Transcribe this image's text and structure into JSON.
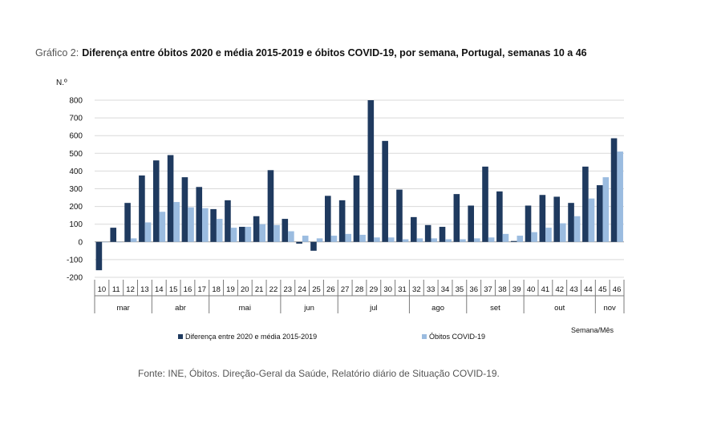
{
  "title": {
    "prefix": "Gráfico 2:",
    "main": "Diferença entre óbitos 2020 e média 2015-2019 e óbitos COVID-19, por semana, Portugal, semanas 10 a 46"
  },
  "source": "Fonte: INE, Óbitos. Direção-Geral da Saúde, Relatório diário de Situação COVID-19.",
  "chart_data": {
    "type": "bar",
    "ylabel": "N.º",
    "xlabel": "Semana/Mês",
    "ylim": [
      -200,
      800
    ],
    "yticks": [
      -200,
      -100,
      0,
      100,
      200,
      300,
      400,
      500,
      600,
      700,
      800
    ],
    "grid": true,
    "legend_position": "bottom",
    "categories": [
      "10",
      "11",
      "12",
      "13",
      "14",
      "15",
      "16",
      "17",
      "18",
      "19",
      "20",
      "21",
      "22",
      "23",
      "24",
      "25",
      "26",
      "27",
      "28",
      "29",
      "30",
      "31",
      "32",
      "33",
      "34",
      "35",
      "36",
      "37",
      "38",
      "39",
      "40",
      "41",
      "42",
      "43",
      "44",
      "45",
      "46"
    ],
    "months": [
      {
        "label": "mar",
        "start": 0,
        "end": 3
      },
      {
        "label": "abr",
        "start": 4,
        "end": 7
      },
      {
        "label": "mai",
        "start": 8,
        "end": 12
      },
      {
        "label": "jun",
        "start": 13,
        "end": 16
      },
      {
        "label": "jul",
        "start": 17,
        "end": 21
      },
      {
        "label": "ago",
        "start": 22,
        "end": 25
      },
      {
        "label": "set",
        "start": 26,
        "end": 29
      },
      {
        "label": "out",
        "start": 30,
        "end": 34
      },
      {
        "label": "nov",
        "start": 35,
        "end": 36
      }
    ],
    "series": [
      {
        "name": "Diferença entre 2020 e média 2015-2019",
        "color": "#1f3a5f",
        "values": [
          -160,
          80,
          220,
          375,
          460,
          490,
          365,
          310,
          185,
          235,
          85,
          145,
          405,
          130,
          -10,
          -50,
          260,
          235,
          375,
          800,
          570,
          295,
          140,
          95,
          85,
          270,
          205,
          425,
          285,
          5,
          205,
          265,
          255,
          220,
          425,
          320,
          585
        ]
      },
      {
        "name": "Óbitos COVID-19",
        "color": "#9bbce0",
        "values": [
          0,
          0,
          20,
          110,
          170,
          225,
          195,
          190,
          130,
          80,
          85,
          100,
          95,
          60,
          35,
          20,
          35,
          45,
          40,
          25,
          25,
          15,
          20,
          20,
          15,
          15,
          20,
          25,
          45,
          35,
          55,
          80,
          105,
          145,
          245,
          365,
          510
        ]
      }
    ]
  }
}
